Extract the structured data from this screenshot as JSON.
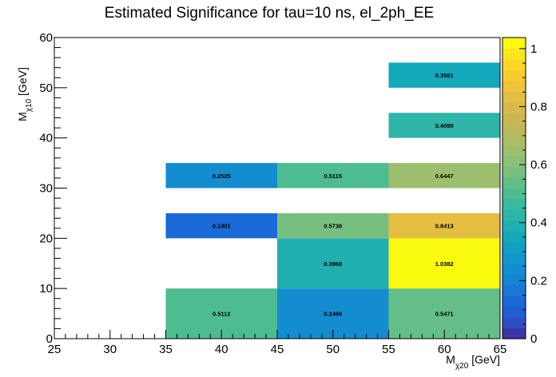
{
  "chart_data": {
    "type": "heatmap",
    "title": "Estimated Significance for tau=10 ns, el_2ph_EE",
    "xlabel": {
      "main": "M",
      "sub": "χ20",
      "unit": " [GeV]"
    },
    "ylabel": {
      "main": "M",
      "sub": "χ10",
      "unit": " [GeV]"
    },
    "xlim": [
      25,
      65
    ],
    "ylim": [
      0,
      60
    ],
    "x_ticks": [
      25,
      30,
      35,
      40,
      45,
      50,
      55,
      60,
      65
    ],
    "y_ticks": [
      0,
      10,
      20,
      30,
      40,
      50,
      60
    ],
    "z_range": [
      0,
      1.0382
    ],
    "colorbar_ticks": [
      0,
      0.2,
      0.4,
      0.6,
      0.8,
      1
    ],
    "cells": [
      {
        "x": [
          35,
          45
        ],
        "y": [
          0,
          10
        ],
        "value": 0.5112,
        "label": "0.5112"
      },
      {
        "x": [
          45,
          55
        ],
        "y": [
          0,
          10
        ],
        "value": 0.2466,
        "label": "0.2466"
      },
      {
        "x": [
          55,
          65
        ],
        "y": [
          0,
          10
        ],
        "value": 0.5471,
        "label": "0.5471"
      },
      {
        "x": [
          45,
          55
        ],
        "y": [
          10,
          20
        ],
        "value": 0.3968,
        "label": "0.3968"
      },
      {
        "x": [
          55,
          65
        ],
        "y": [
          10,
          20
        ],
        "value": 1.0382,
        "label": "1.0382"
      },
      {
        "x": [
          35,
          45
        ],
        "y": [
          20,
          25
        ],
        "value": 0.1401,
        "label": "0.1401"
      },
      {
        "x": [
          45,
          55
        ],
        "y": [
          20,
          25
        ],
        "value": 0.5738,
        "label": "0.5738"
      },
      {
        "x": [
          55,
          65
        ],
        "y": [
          20,
          25
        ],
        "value": 0.8413,
        "label": "0.8413"
      },
      {
        "x": [
          35,
          45
        ],
        "y": [
          30,
          35
        ],
        "value": 0.2525,
        "label": "0.2525"
      },
      {
        "x": [
          45,
          55
        ],
        "y": [
          30,
          35
        ],
        "value": 0.5115,
        "label": "0.5115"
      },
      {
        "x": [
          55,
          65
        ],
        "y": [
          30,
          35
        ],
        "value": 0.6447,
        "label": "0.6447"
      },
      {
        "x": [
          55,
          65
        ],
        "y": [
          40,
          45
        ],
        "value": 0.409,
        "label": "0.4090"
      },
      {
        "x": [
          55,
          65
        ],
        "y": [
          50,
          55
        ],
        "value": 0.3581,
        "label": "0.3581"
      }
    ],
    "palette": [
      "#3b35a6",
      "#2f4ec2",
      "#1e5fd6",
      "#1a6ad8",
      "#1778d8",
      "#1484d4",
      "#148dd0",
      "#1396c9",
      "#11a0c3",
      "#14a8bb",
      "#22afb2",
      "#2eb4a8",
      "#3bb99d",
      "#4dbc93",
      "#63be88",
      "#78bf7f",
      "#8bbf76",
      "#9dbe6d",
      "#aebc63",
      "#bdb95b",
      "#cbb752",
      "#d8b94a",
      "#e4be40",
      "#efc438",
      "#f8cc2d",
      "#fbd825",
      "#f9e71e",
      "#f9f90e"
    ]
  }
}
